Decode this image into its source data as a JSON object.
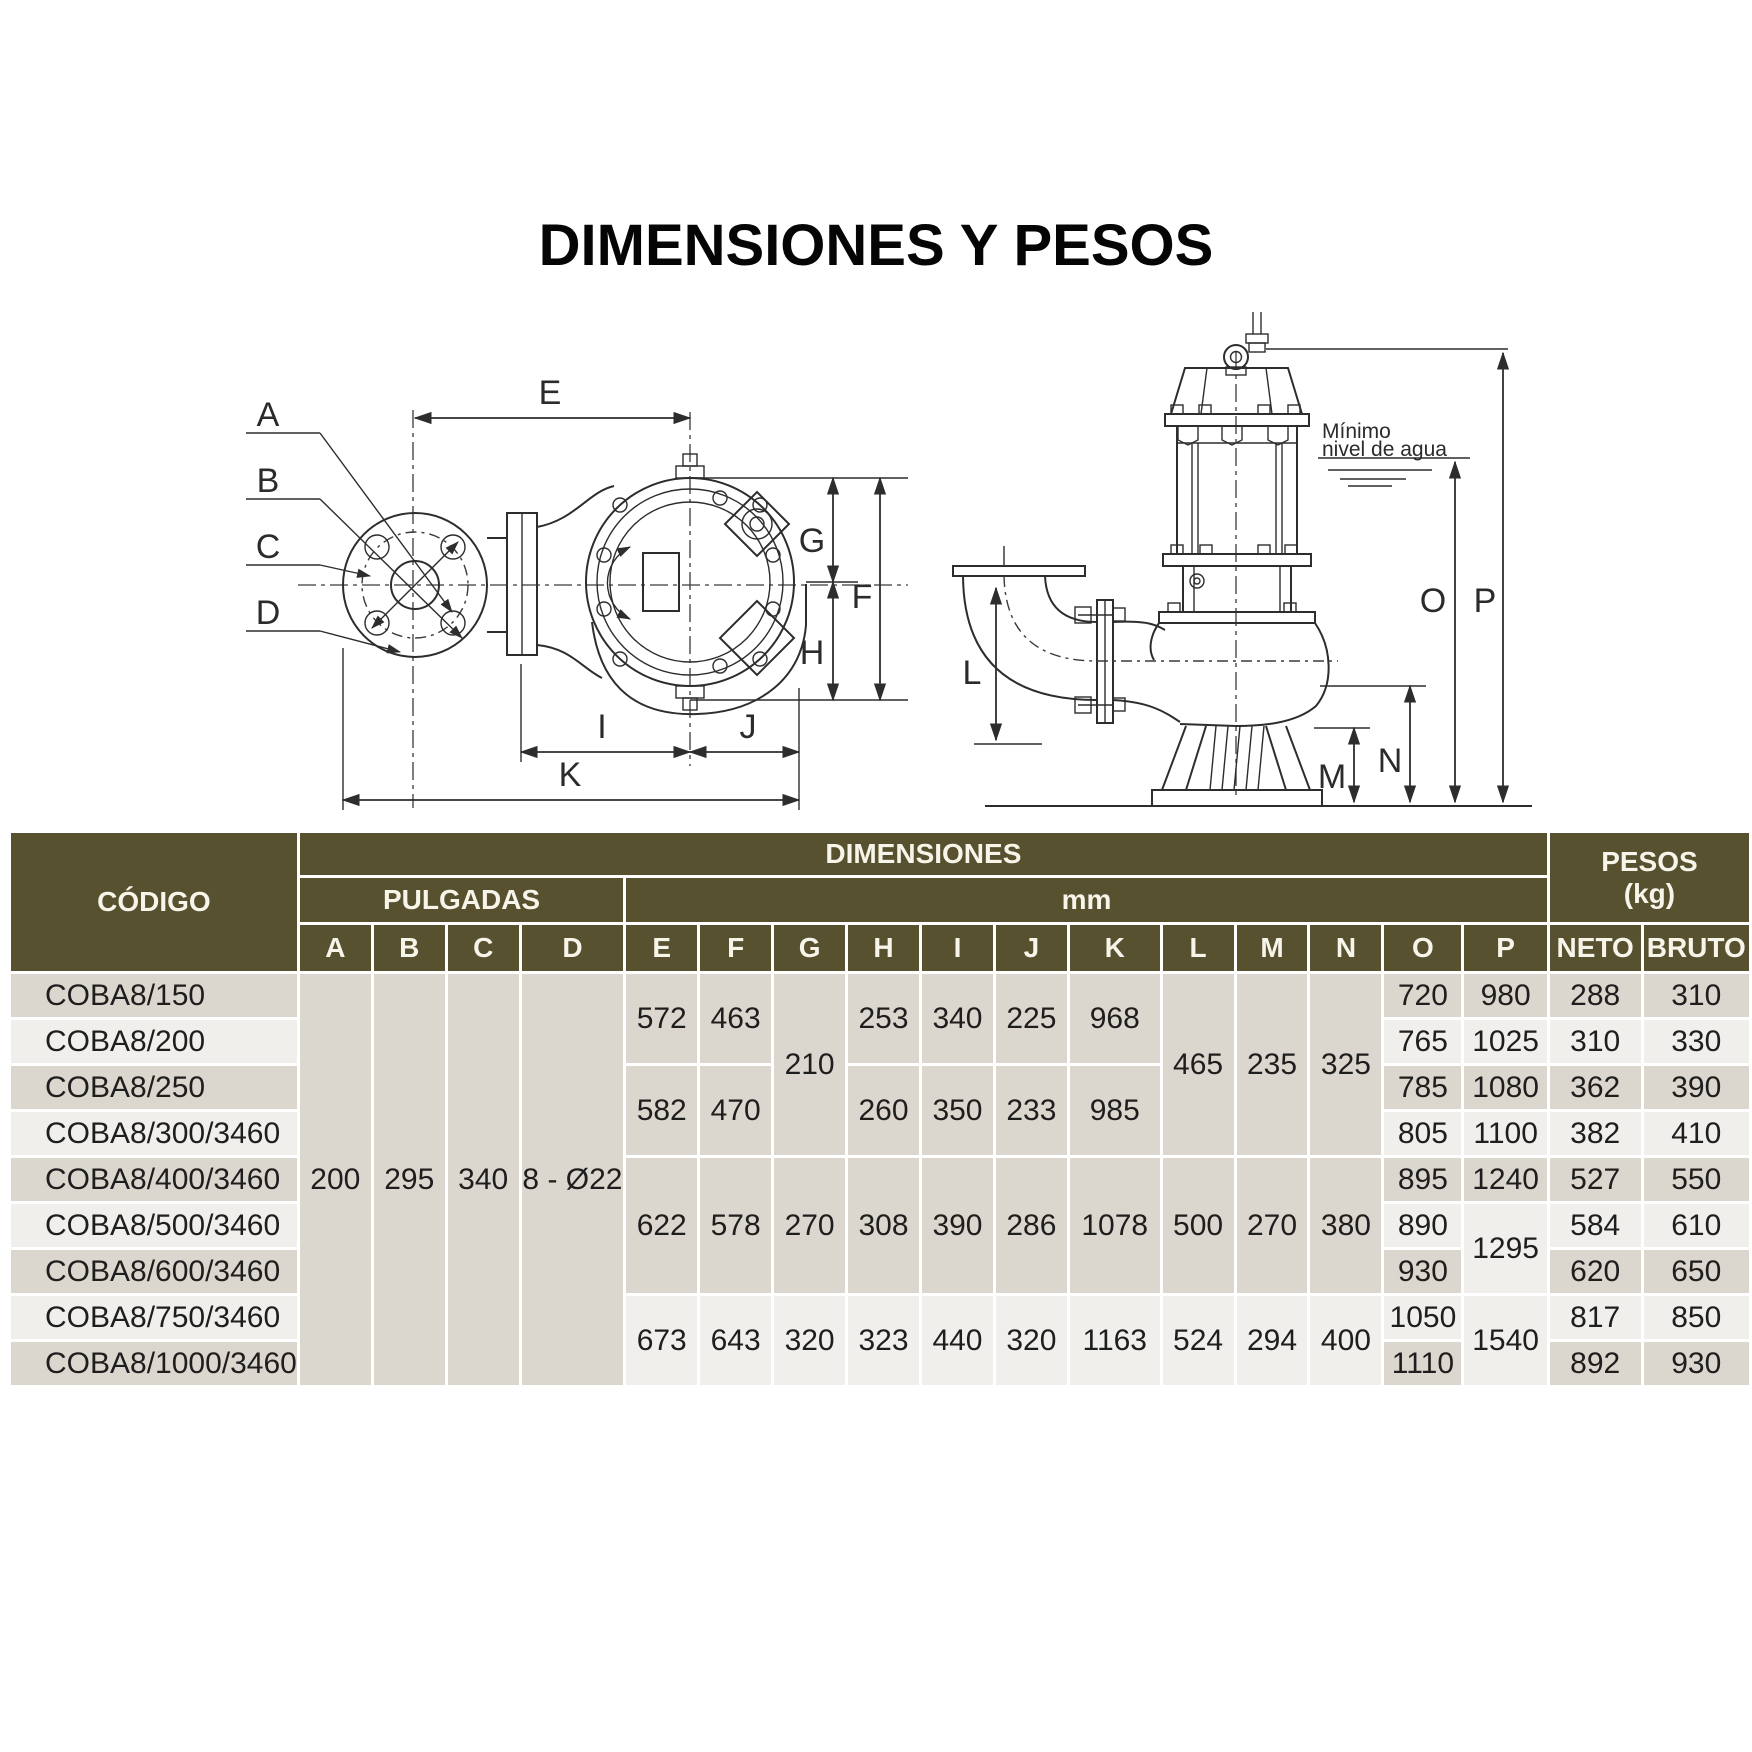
{
  "title": "DIMENSIONES Y PESOS",
  "drawing": {
    "labels": {
      "A": "A",
      "B": "B",
      "C": "C",
      "D": "D",
      "E": "E",
      "F": "F",
      "G": "G",
      "H": "H",
      "I": "I",
      "J": "J",
      "K": "K",
      "L": "L",
      "M": "M",
      "N": "N",
      "O": "O",
      "P": "P"
    },
    "min_water_level": {
      "line1": "Mínimo",
      "line2": "nivel de agua"
    }
  },
  "table": {
    "header": {
      "codigo": "CÓDIGO",
      "dimensiones": "DIMENSIONES",
      "pulgadas": "PULGADAS",
      "mm": "mm",
      "pesos_line1": "PESOS",
      "pesos_line2": "(kg)",
      "cols": [
        "A",
        "B",
        "C",
        "D",
        "E",
        "F",
        "G",
        "H",
        "I",
        "J",
        "K",
        "L",
        "M",
        "N",
        "O",
        "P",
        "NETO",
        "BRUTO"
      ]
    },
    "rows": [
      {
        "code": "COBA8/150",
        "s": "d",
        "cells": [
          {
            "v": "200",
            "rs": 9,
            "s": "d"
          },
          {
            "v": "295",
            "rs": 9,
            "s": "d"
          },
          {
            "v": "340",
            "rs": 9,
            "s": "d"
          },
          {
            "v": "8 - Ø22",
            "rs": 9,
            "s": "d"
          },
          {
            "v": "572",
            "rs": 2,
            "s": "d"
          },
          {
            "v": "463",
            "rs": 2,
            "s": "d"
          },
          {
            "v": "210",
            "rs": 4,
            "s": "d"
          },
          {
            "v": "253",
            "rs": 2,
            "s": "d"
          },
          {
            "v": "340",
            "rs": 2,
            "s": "d"
          },
          {
            "v": "225",
            "rs": 2,
            "s": "d"
          },
          {
            "v": "968",
            "rs": 2,
            "s": "d"
          },
          {
            "v": "465",
            "rs": 4,
            "s": "d"
          },
          {
            "v": "235",
            "rs": 4,
            "s": "d"
          },
          {
            "v": "325",
            "rs": 4,
            "s": "d"
          },
          {
            "v": "720"
          },
          {
            "v": "980"
          },
          {
            "v": "288"
          },
          {
            "v": "310"
          }
        ]
      },
      {
        "code": "COBA8/200",
        "s": "l",
        "cells": [
          {
            "v": "765"
          },
          {
            "v": "1025"
          },
          {
            "v": "310"
          },
          {
            "v": "330"
          }
        ]
      },
      {
        "code": "COBA8/250",
        "s": "d",
        "cells": [
          {
            "v": "582",
            "rs": 2,
            "s": "d"
          },
          {
            "v": "470",
            "rs": 2,
            "s": "d"
          },
          {
            "v": "260",
            "rs": 2,
            "s": "d"
          },
          {
            "v": "350",
            "rs": 2,
            "s": "d"
          },
          {
            "v": "233",
            "rs": 2,
            "s": "d"
          },
          {
            "v": "985",
            "rs": 2,
            "s": "d"
          },
          {
            "v": "785"
          },
          {
            "v": "1080"
          },
          {
            "v": "362"
          },
          {
            "v": "390"
          }
        ]
      },
      {
        "code": "COBA8/300/3460",
        "s": "l",
        "cells": [
          {
            "v": "805"
          },
          {
            "v": "1100"
          },
          {
            "v": "382"
          },
          {
            "v": "410"
          }
        ]
      },
      {
        "code": "COBA8/400/3460",
        "s": "d",
        "cells": [
          {
            "v": "622",
            "rs": 3,
            "s": "d"
          },
          {
            "v": "578",
            "rs": 3,
            "s": "d"
          },
          {
            "v": "270",
            "rs": 3,
            "s": "d"
          },
          {
            "v": "308",
            "rs": 3,
            "s": "d"
          },
          {
            "v": "390",
            "rs": 3,
            "s": "d"
          },
          {
            "v": "286",
            "rs": 3,
            "s": "d"
          },
          {
            "v": "1078",
            "rs": 3,
            "s": "d"
          },
          {
            "v": "500",
            "rs": 3,
            "s": "d"
          },
          {
            "v": "270",
            "rs": 3,
            "s": "d"
          },
          {
            "v": "380",
            "rs": 3,
            "s": "d"
          },
          {
            "v": "895"
          },
          {
            "v": "1240"
          },
          {
            "v": "527"
          },
          {
            "v": "550"
          }
        ]
      },
      {
        "code": "COBA8/500/3460",
        "s": "l",
        "cells": [
          {
            "v": "890"
          },
          {
            "v": "1295",
            "rs": 2,
            "s": "l"
          },
          {
            "v": "584"
          },
          {
            "v": "610"
          }
        ]
      },
      {
        "code": "COBA8/600/3460",
        "s": "d",
        "cells": [
          {
            "v": "930"
          },
          {
            "v": "620"
          },
          {
            "v": "650"
          }
        ]
      },
      {
        "code": "COBA8/750/3460",
        "s": "l",
        "cells": [
          {
            "v": "673",
            "rs": 2,
            "s": "l"
          },
          {
            "v": "643",
            "rs": 2,
            "s": "l"
          },
          {
            "v": "320",
            "rs": 2,
            "s": "l"
          },
          {
            "v": "323",
            "rs": 2,
            "s": "l"
          },
          {
            "v": "440",
            "rs": 2,
            "s": "l"
          },
          {
            "v": "320",
            "rs": 2,
            "s": "l"
          },
          {
            "v": "1163",
            "rs": 2,
            "s": "l"
          },
          {
            "v": "524",
            "rs": 2,
            "s": "l"
          },
          {
            "v": "294",
            "rs": 2,
            "s": "l"
          },
          {
            "v": "400",
            "rs": 2,
            "s": "l"
          },
          {
            "v": "1050"
          },
          {
            "v": "1540",
            "rs": 2,
            "s": "l"
          },
          {
            "v": "817"
          },
          {
            "v": "850"
          }
        ]
      },
      {
        "code": "COBA8/1000/3460",
        "s": "d",
        "cells": [
          {
            "v": "1110"
          },
          {
            "v": "892"
          },
          {
            "v": "930"
          }
        ]
      }
    ]
  }
}
